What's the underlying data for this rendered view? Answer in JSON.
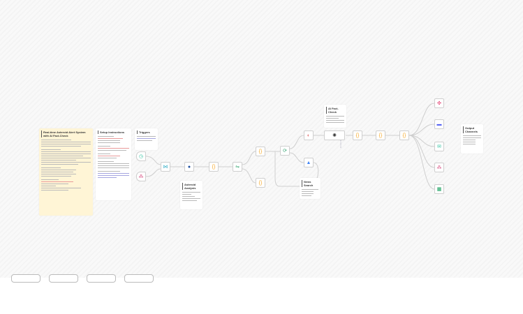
{
  "notes": {
    "main_title": "Real-time Asteroid Alert System with AI Fact-Check",
    "setup": "Setup Instructions",
    "triggers": "Triggers",
    "asteroid_analysis": "Asteroid Analysis",
    "ai_fact_check": "AI Fact-Check",
    "news_search": "News Search",
    "output_channels": "Output Channels"
  },
  "colors": {
    "note_yellow": "#fff5d6",
    "code": "#f5a623",
    "trigger": "#35c3a2",
    "discord": "#5865f2",
    "sheets": "#0f9d58"
  },
  "icons": [
    "clock-icon",
    "webhook-icon",
    "merge-icon",
    "nasa-icon",
    "code-icon",
    "filter-icon",
    "loop-icon",
    "translate-icon",
    "news-icon",
    "openai-icon",
    "slack-icon",
    "discord-icon",
    "email-icon",
    "webhook-icon",
    "sheets-icon"
  ]
}
